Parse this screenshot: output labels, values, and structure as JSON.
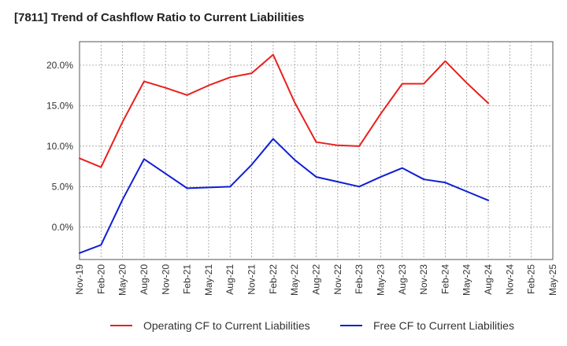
{
  "chart_data": {
    "type": "line",
    "title": "[7811]  Trend of Cashflow Ratio to Current Liabilities",
    "x": [
      "Nov-19",
      "Feb-20",
      "May-20",
      "Aug-20",
      "Nov-20",
      "Feb-21",
      "May-21",
      "Aug-21",
      "Nov-21",
      "Feb-22",
      "May-22",
      "Aug-22",
      "Nov-22",
      "Feb-23",
      "May-23",
      "Aug-23",
      "Nov-23",
      "Feb-24",
      "May-24",
      "Aug-24",
      "Nov-24",
      "Feb-25",
      "May-25"
    ],
    "y_ticks": [
      "20.0%",
      "15.0%",
      "10.0%",
      "5.0%",
      "0.0%"
    ],
    "y_tick_values": [
      20,
      15,
      10,
      5,
      0
    ],
    "ylim": [
      -4.0,
      22.9
    ],
    "grid": true,
    "legend_position": "bottom-center",
    "series": [
      {
        "name": "Operating CF to Current Liabilities",
        "color": "#e8201c",
        "values": [
          8.5,
          7.4,
          13.0,
          18.0,
          17.2,
          16.3,
          17.5,
          18.5,
          19.0,
          21.3,
          15.4,
          10.5,
          10.1,
          10.0,
          14.0,
          17.7,
          17.7,
          20.5,
          17.8,
          15.3,
          null,
          null,
          null
        ]
      },
      {
        "name": "Free CF to Current Liabilities",
        "color": "#0f1fd4",
        "values": [
          -3.2,
          -2.2,
          3.4,
          8.4,
          6.6,
          4.8,
          4.9,
          5.0,
          7.7,
          10.9,
          8.3,
          6.2,
          5.6,
          5.0,
          6.2,
          7.3,
          5.9,
          5.5,
          4.4,
          3.3,
          null,
          null,
          null
        ]
      }
    ]
  }
}
